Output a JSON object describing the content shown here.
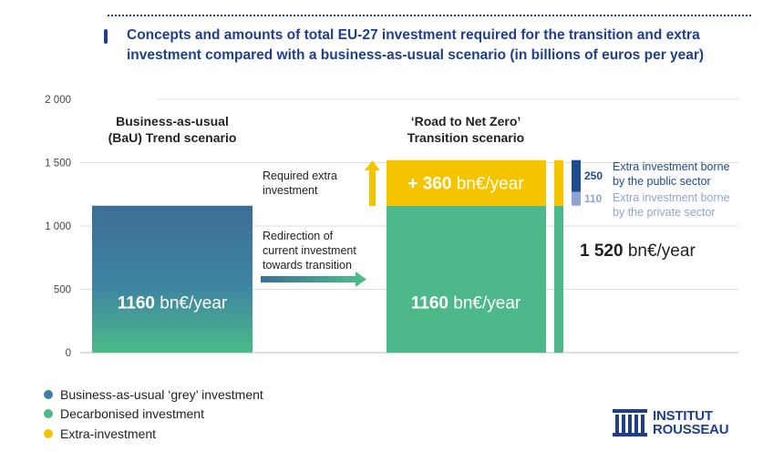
{
  "title": "Concepts and amounts of total EU-27 investment required for the transition and extra investment compared with a business-as-usual scenario (in billions of euros per year)",
  "chart_data": {
    "type": "bar",
    "ylim": [
      0,
      2000
    ],
    "y_ticks": [
      "0",
      "500",
      "1 000",
      "1 500",
      "2 000"
    ],
    "y_tick_values": [
      0,
      500,
      1000,
      1500,
      2000
    ],
    "scenarios": [
      {
        "label_line1": "Business-as-usual",
        "label_line2": "(BaU) Trend scenario",
        "segments": [
          {
            "series": "Business-as-usual ‘grey’ investment",
            "value": 1160
          }
        ],
        "value_label_bold": "1160",
        "value_label_unit": " bn€/year"
      },
      {
        "label_line1": "‘Road to Net Zero’",
        "label_line2": "Transition scenario",
        "segments": [
          {
            "series": "Decarbonised investment",
            "value": 1160
          },
          {
            "series": "Extra-investment",
            "value": 360
          }
        ],
        "value_label_bold": "1160",
        "value_label_unit": " bn€/year",
        "extra_label_bold": "+ 360",
        "extra_label_unit": " bn€/year"
      }
    ],
    "total_column": {
      "decarbonised": 1160,
      "extra": 360
    },
    "total_label_bold": "1 520",
    "total_label_unit": " bn€/year",
    "extra_breakdown": [
      {
        "value": 250,
        "line1": "Extra investment borne",
        "line2": "by the public sector",
        "color": "#1f4b8f"
      },
      {
        "value": 110,
        "line1": "Extra investment borne",
        "line2": "by the private sector",
        "color": "#8fa4d6"
      }
    ],
    "annotations": {
      "required_line1": "Required extra",
      "required_line2": "investment",
      "redirect_line1": "Redirection of",
      "redirect_line2": "current investment",
      "redirect_line3": "towards transition"
    },
    "legend": [
      {
        "label": "Business-as-usual ‘grey’ investment",
        "color": "#3f7fa6"
      },
      {
        "label": "Decarbonised investment",
        "color": "#4db98a"
      },
      {
        "label": "Extra-investment",
        "color": "#f5c400"
      }
    ]
  },
  "logo": {
    "line1": "INSTITUT",
    "line2": "ROUSSEAU"
  }
}
